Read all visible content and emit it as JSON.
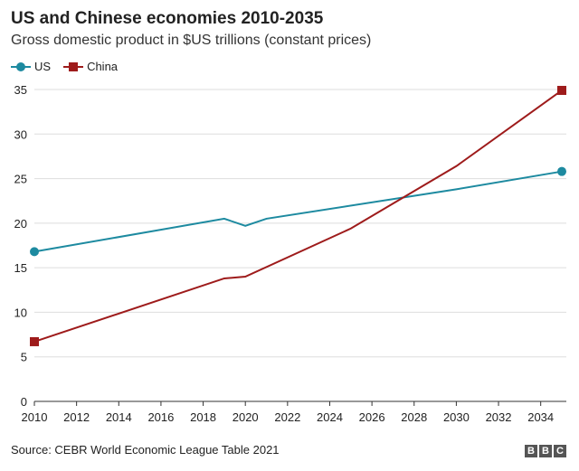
{
  "title": "US and Chinese economies 2010-2035",
  "subtitle": "Gross domestic product in $US trillions (constant prices)",
  "source": "Source: CEBR World Economic League Table 2021",
  "logo": "BBC",
  "colors": {
    "US": "#1d8aa0",
    "China": "#9e1b1b",
    "grid": "#dddddd",
    "axis": "#333333"
  },
  "chart_data": {
    "type": "line",
    "title": "US and Chinese economies 2010-2035",
    "subtitle": "Gross domestic product in $US trillions (constant prices)",
    "xlim": [
      2010,
      2035
    ],
    "ylim": [
      0,
      35
    ],
    "x_ticks": [
      2010,
      2012,
      2014,
      2016,
      2018,
      2020,
      2022,
      2024,
      2026,
      2028,
      2030,
      2032,
      2034
    ],
    "y_ticks": [
      0,
      5,
      10,
      15,
      20,
      25,
      30,
      35
    ],
    "grid": "horizontal",
    "legend": "top-left",
    "series": [
      {
        "name": "US",
        "marker": "circle",
        "x": [
          2010,
          2019,
          2020,
          2021,
          2030,
          2035
        ],
        "y": [
          16.8,
          20.5,
          19.7,
          20.5,
          23.8,
          25.8
        ]
      },
      {
        "name": "China",
        "marker": "square",
        "x": [
          2010,
          2019,
          2020,
          2025,
          2030,
          2035
        ],
        "y": [
          6.7,
          13.8,
          14.0,
          19.4,
          26.4,
          34.9
        ]
      }
    ]
  }
}
